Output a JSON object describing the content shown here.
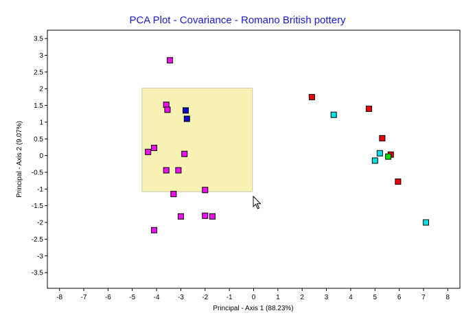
{
  "chart_data": {
    "type": "scatter",
    "title": "PCA Plot - Covariance - Romano British pottery",
    "xlabel": "Principal - Axis 1 (88.23%)",
    "ylabel": "Principal - Axis 2 (9.07%)",
    "xlim": [
      -8.5,
      8.5
    ],
    "ylim": [
      -3.97,
      3.75
    ],
    "x_ticks": [
      "-8",
      "-7",
      "-6",
      "-5",
      "-4",
      "-3",
      "-2",
      "-1",
      "0",
      "1",
      "2",
      "3",
      "4",
      "5",
      "6",
      "7",
      "8"
    ],
    "y_ticks": [
      "-3.5",
      "-3",
      "-2.5",
      "-2",
      "-1.5",
      "-1",
      "-0.5",
      "0",
      "0.5",
      "1",
      "1.5",
      "2",
      "2.5",
      "3",
      "3.5"
    ],
    "grid": false,
    "legend": "none",
    "selection_box": {
      "x": [
        -4.6,
        -0.05
      ],
      "y": [
        -1.08,
        2.02
      ],
      "color": "#f8f3b4"
    },
    "series": [
      {
        "color": "#ee10ee",
        "points": [
          [
            -3.45,
            2.85
          ],
          [
            -3.6,
            1.52
          ],
          [
            -3.55,
            1.37
          ],
          [
            -4.1,
            0.23
          ],
          [
            -4.35,
            0.11
          ],
          [
            -2.85,
            0.05
          ],
          [
            -3.6,
            -0.44
          ],
          [
            -3.1,
            -0.44
          ],
          [
            -3.3,
            -1.15
          ],
          [
            -2.0,
            -1.03
          ],
          [
            -3.0,
            -1.82
          ],
          [
            -2.0,
            -1.8
          ],
          [
            -1.7,
            -1.82
          ],
          [
            -4.1,
            -2.23
          ]
        ]
      },
      {
        "color": "#0a0ad0",
        "points": [
          [
            -2.8,
            1.35
          ],
          [
            -2.75,
            1.1
          ]
        ]
      },
      {
        "color": "#ee0000",
        "points": [
          [
            2.4,
            1.75
          ],
          [
            4.75,
            1.4
          ],
          [
            5.3,
            0.52
          ],
          [
            5.65,
            0.03
          ],
          [
            5.95,
            -0.78
          ]
        ]
      },
      {
        "color": "#00e0e0",
        "points": [
          [
            3.3,
            1.22
          ],
          [
            5.2,
            0.07
          ],
          [
            5.0,
            -0.15
          ],
          [
            7.1,
            -2.0
          ]
        ]
      },
      {
        "color": "#00dd00",
        "points": [
          [
            5.55,
            -0.03
          ]
        ]
      }
    ]
  }
}
